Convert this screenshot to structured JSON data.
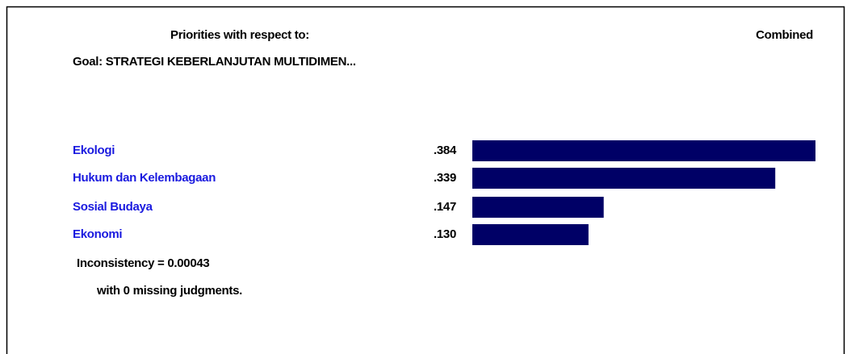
{
  "chart_data": {
    "type": "bar",
    "orientation": "horizontal",
    "title": "Priorities with respect to:",
    "subtitle": "Goal: STRATEGI KEBERLANJUTAN MULTIDIMEN...",
    "column_label": "Combined",
    "categories": [
      "Ekologi",
      "Hukum dan Kelembagaan",
      "Sosial Budaya",
      "Ekonomi"
    ],
    "values": [
      0.384,
      0.339,
      0.147,
      0.13
    ],
    "value_labels": [
      ".384",
      ".339",
      ".147",
      ".130"
    ],
    "color": "#000066",
    "category_color": "#1a1adf",
    "annotations": [
      "Inconsistency = 0.00043",
      "with 0  missing judgments."
    ]
  }
}
